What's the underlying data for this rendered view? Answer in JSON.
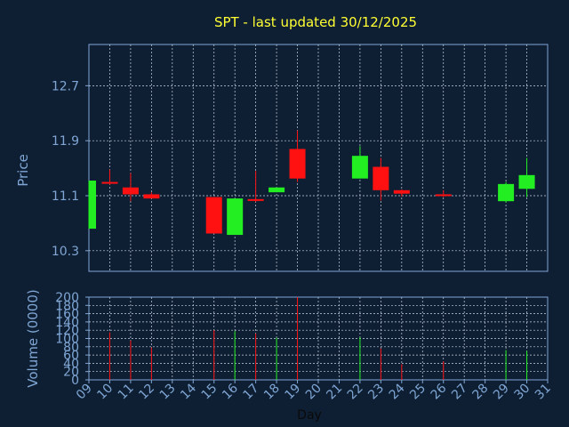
{
  "colors": {
    "background": "#0f1f33",
    "title": "#ffff33",
    "axis_text": "#7fa6d4",
    "grid": "#c7d3e3",
    "up": "#22ee22",
    "down": "#ff1111",
    "plot_bg": "#0f1f33"
  },
  "chart_data": [
    {
      "type": "candlestick",
      "title": "SPT - last updated 30/12/2025",
      "ylabel": "Price",
      "ylim": [
        10.0,
        13.3
      ],
      "yticks": [
        "10.3",
        "11.1",
        "11.9",
        "12.7"
      ],
      "grid": true,
      "x_day_ticks": [
        "09",
        "10",
        "11",
        "12",
        "13",
        "14",
        "15",
        "16",
        "17",
        "18",
        "19",
        "20",
        "21",
        "22",
        "23",
        "24",
        "25",
        "26",
        "27",
        "28",
        "29",
        "30",
        "31"
      ],
      "candles": [
        {
          "day": 9,
          "open": 10.62,
          "high": 11.32,
          "low": 10.62,
          "close": 11.32,
          "direction": "up"
        },
        {
          "day": 10,
          "open": 11.3,
          "high": 11.48,
          "low": 11.26,
          "close": 11.3,
          "direction": "down"
        },
        {
          "day": 11,
          "open": 11.22,
          "high": 11.43,
          "low": 11.02,
          "close": 11.12,
          "direction": "down"
        },
        {
          "day": 12,
          "open": 11.12,
          "high": 11.15,
          "low": 11.06,
          "close": 11.06,
          "direction": "down"
        },
        {
          "day": 15,
          "open": 11.08,
          "high": 11.08,
          "low": 10.55,
          "close": 10.55,
          "direction": "down"
        },
        {
          "day": 16,
          "open": 10.53,
          "high": 11.06,
          "low": 10.53,
          "close": 11.06,
          "direction": "up"
        },
        {
          "day": 17,
          "open": 11.05,
          "high": 11.46,
          "low": 11.01,
          "close": 11.04,
          "direction": "down"
        },
        {
          "day": 18,
          "open": 11.15,
          "high": 11.22,
          "low": 11.15,
          "close": 11.22,
          "direction": "up"
        },
        {
          "day": 19,
          "open": 11.78,
          "high": 12.05,
          "low": 11.3,
          "close": 11.35,
          "direction": "down"
        },
        {
          "day": 22,
          "open": 11.35,
          "high": 11.82,
          "low": 11.35,
          "close": 11.68,
          "direction": "up"
        },
        {
          "day": 23,
          "open": 11.52,
          "high": 11.65,
          "low": 11.03,
          "close": 11.18,
          "direction": "down"
        },
        {
          "day": 24,
          "open": 11.18,
          "high": 11.19,
          "low": 11.09,
          "close": 11.13,
          "direction": "down"
        },
        {
          "day": 26,
          "open": 11.12,
          "high": 11.18,
          "low": 11.08,
          "close": 11.1,
          "direction": "down"
        },
        {
          "day": 29,
          "open": 11.02,
          "high": 11.3,
          "low": 11.0,
          "close": 11.27,
          "direction": "up"
        },
        {
          "day": 30,
          "open": 11.2,
          "high": 11.65,
          "low": 11.08,
          "close": 11.4,
          "direction": "up"
        }
      ]
    },
    {
      "type": "bar",
      "ylabel": "Volume (0000)",
      "ylim": [
        0,
        200
      ],
      "yticks": [
        "0",
        "20",
        "40",
        "60",
        "80",
        "100",
        "120",
        "140",
        "160",
        "180",
        "200"
      ],
      "xlabel": "Day",
      "grid": true,
      "volumes": [
        {
          "day": 10,
          "value": 115,
          "direction": "down"
        },
        {
          "day": 11,
          "value": 95,
          "direction": "down"
        },
        {
          "day": 12,
          "value": 78,
          "direction": "down"
        },
        {
          "day": 15,
          "value": 120,
          "direction": "down"
        },
        {
          "day": 16,
          "value": 118,
          "direction": "up"
        },
        {
          "day": 17,
          "value": 112,
          "direction": "down"
        },
        {
          "day": 18,
          "value": 102,
          "direction": "up"
        },
        {
          "day": 19,
          "value": 200,
          "direction": "down"
        },
        {
          "day": 22,
          "value": 103,
          "direction": "up"
        },
        {
          "day": 23,
          "value": 76,
          "direction": "down"
        },
        {
          "day": 24,
          "value": 38,
          "direction": "down"
        },
        {
          "day": 26,
          "value": 45,
          "direction": "down"
        },
        {
          "day": 29,
          "value": 72,
          "direction": "up"
        },
        {
          "day": 30,
          "value": 70,
          "direction": "up"
        }
      ]
    }
  ]
}
